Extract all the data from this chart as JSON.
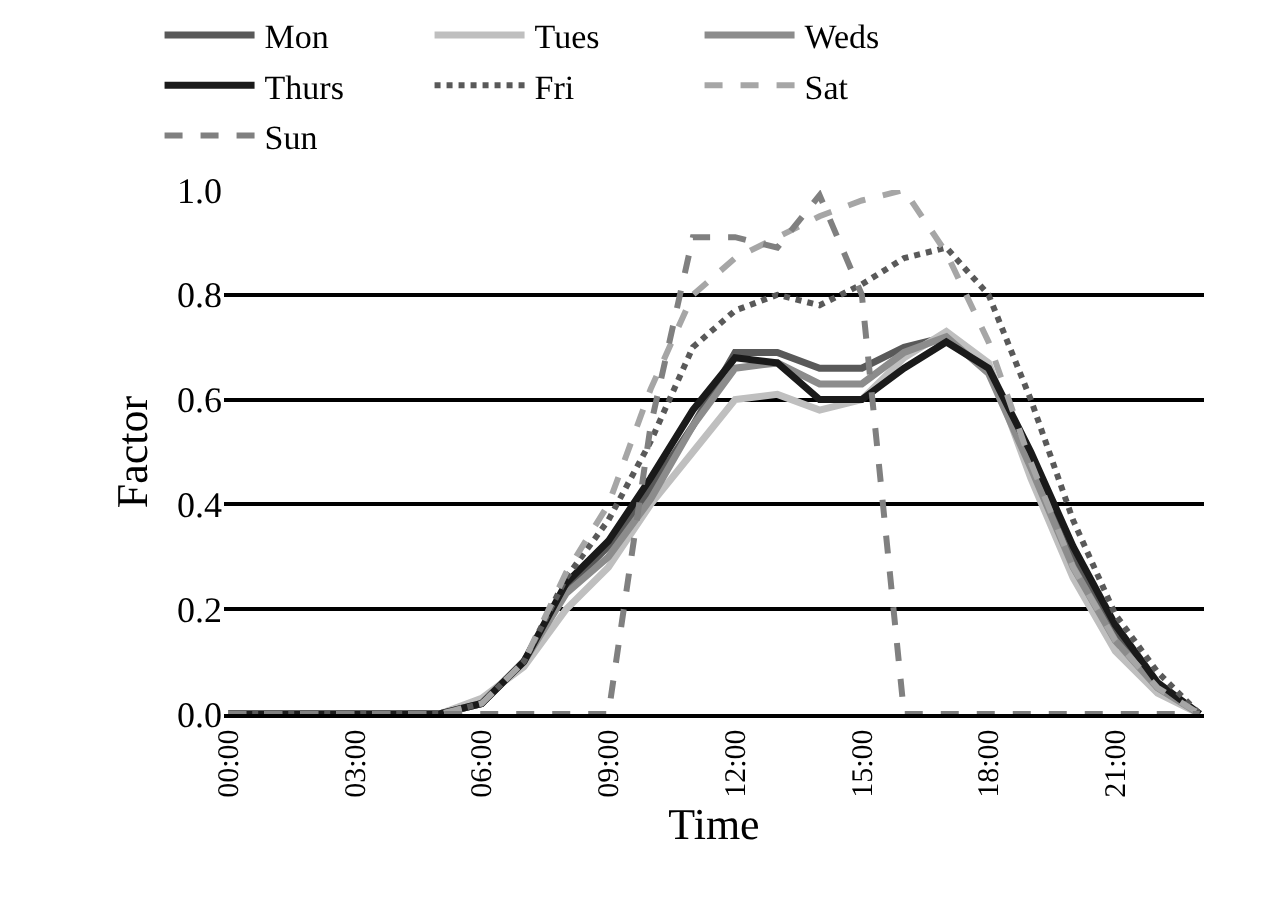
{
  "chart_data": {
    "type": "line",
    "xlabel": "Time",
    "ylabel": "Factor",
    "categories": [
      "00:00",
      null,
      null,
      "03:00",
      null,
      null,
      "06:00",
      null,
      null,
      "09:00",
      null,
      null,
      "12:00",
      null,
      null,
      "15:00",
      null,
      null,
      "18:00",
      null,
      null,
      "21:00",
      null,
      null
    ],
    "series": [
      {
        "name": "Mon",
        "color": "#595959",
        "line_style": "solid",
        "values": [
          0,
          0,
          0,
          0,
          0,
          0,
          0.02,
          0.1,
          0.24,
          0.32,
          0.43,
          0.55,
          0.69,
          0.69,
          0.66,
          0.66,
          0.7,
          0.72,
          0.66,
          0.48,
          0.3,
          0.15,
          0.05,
          0
        ]
      },
      {
        "name": "Tues",
        "color": "#bfbfbf",
        "line_style": "solid",
        "values": [
          0,
          0,
          0,
          0,
          0,
          0,
          0.03,
          0.09,
          0.2,
          0.28,
          0.4,
          0.5,
          0.6,
          0.61,
          0.58,
          0.6,
          0.68,
          0.73,
          0.67,
          0.45,
          0.26,
          0.12,
          0.04,
          0
        ]
      },
      {
        "name": "Weds",
        "color": "#8c8c8c",
        "line_style": "solid",
        "values": [
          0,
          0,
          0,
          0,
          0,
          0,
          0.02,
          0.1,
          0.23,
          0.3,
          0.41,
          0.55,
          0.66,
          0.67,
          0.63,
          0.63,
          0.69,
          0.72,
          0.65,
          0.47,
          0.28,
          0.14,
          0.05,
          0
        ]
      },
      {
        "name": "Thurs",
        "color": "#1a1a1a",
        "line_style": "solid",
        "values": [
          0,
          0,
          0,
          0,
          0,
          0,
          0.02,
          0.1,
          0.25,
          0.33,
          0.45,
          0.58,
          0.68,
          0.67,
          0.6,
          0.6,
          0.66,
          0.71,
          0.66,
          0.5,
          0.32,
          0.17,
          0.06,
          0
        ]
      },
      {
        "name": "Fri",
        "color": "#595959",
        "line_style": "dotted",
        "values": [
          0,
          0,
          0,
          0,
          0,
          0,
          0.02,
          0.1,
          0.26,
          0.37,
          0.52,
          0.7,
          0.77,
          0.8,
          0.78,
          0.82,
          0.87,
          0.89,
          0.8,
          0.6,
          0.37,
          0.19,
          0.08,
          0
        ]
      },
      {
        "name": "Sat",
        "color": "#a6a6a6",
        "line_style": "dashed",
        "values": [
          0,
          0,
          0,
          0,
          0,
          0,
          0.02,
          0.1,
          0.27,
          0.4,
          0.62,
          0.8,
          0.87,
          0.91,
          0.95,
          0.98,
          1.0,
          0.88,
          0.71,
          0.48,
          0.28,
          0.14,
          0.05,
          0
        ]
      },
      {
        "name": "Sun",
        "color": "#808080",
        "line_style": "dashed",
        "values": [
          0,
          0,
          0,
          0,
          0,
          0,
          0,
          0,
          0,
          0,
          0.55,
          0.91,
          0.91,
          0.89,
          0.99,
          0.8,
          0,
          0,
          0,
          0,
          0,
          0,
          0,
          0
        ]
      }
    ],
    "ylim": [
      0,
      1.0
    ],
    "yticks": [
      {
        "value": 0,
        "label": "0.0"
      },
      {
        "value": 0.2,
        "label": "0.2"
      },
      {
        "value": 0.4,
        "label": "0.4"
      },
      {
        "value": 0.6,
        "label": "0.6"
      },
      {
        "value": 0.8,
        "label": "0.8"
      },
      {
        "value": 1.0,
        "label": "1.0"
      }
    ],
    "grid": "y",
    "legend": "top",
    "marker": "none"
  }
}
